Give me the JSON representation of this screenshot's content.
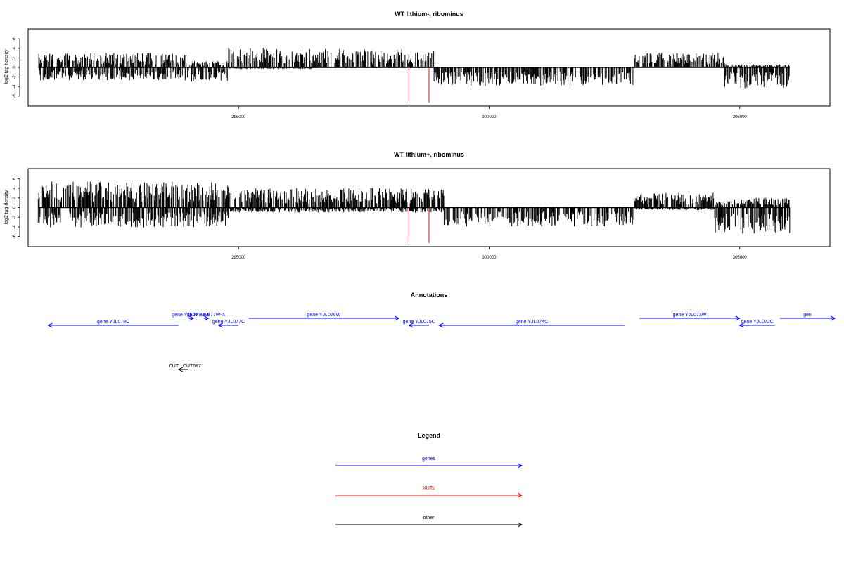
{
  "colors": {
    "genes": "#0000ff",
    "xuts": "#ff0000",
    "other": "#000000",
    "bars": "#000000",
    "baseline": "#000000"
  },
  "chart_data": [
    {
      "id": "top",
      "type": "bar",
      "title": "WT lithium-, ribominus",
      "ylabel": "log2 tag density",
      "xlim": [
        290800,
        306800
      ],
      "ylim": [
        -7.5,
        7.5
      ],
      "xticks": [
        295000,
        300000,
        305000
      ],
      "xtick_labels": [
        "295000",
        "300000",
        "305000"
      ],
      "yticks": [
        -6,
        -4,
        -2,
        0,
        2,
        4,
        6
      ],
      "ytick_labels": [
        "-6",
        "-4",
        "-2",
        "0",
        "2",
        "4",
        "6"
      ],
      "baseline_range": [
        291000,
        306000
      ],
      "xut_marks": [
        298400,
        298800
      ],
      "density_profile": [
        {
          "from": 291000,
          "to": 294000,
          "pos_mean": 1.8,
          "neg_mean": -1.6
        },
        {
          "from": 294000,
          "to": 294800,
          "pos_mean": 0.8,
          "neg_mean": -1.8
        },
        {
          "from": 294800,
          "to": 296500,
          "pos_mean": 2.4,
          "neg_mean": -0.2
        },
        {
          "from": 296500,
          "to": 298900,
          "pos_mean": 2.3,
          "neg_mean": -0.1
        },
        {
          "from": 298900,
          "to": 302900,
          "pos_mean": 0.05,
          "neg_mean": -2.3
        },
        {
          "from": 302900,
          "to": 304700,
          "pos_mean": 1.8,
          "neg_mean": -0.05
        },
        {
          "from": 304700,
          "to": 306000,
          "pos_mean": 0.4,
          "neg_mean": -2.6
        }
      ]
    },
    {
      "id": "bottom",
      "type": "bar",
      "title": "WT lithium+, ribominus",
      "ylabel": "log2 tag density",
      "xlim": [
        290800,
        306800
      ],
      "ylim": [
        -7.5,
        7.5
      ],
      "xticks": [
        295000,
        300000,
        305000
      ],
      "xtick_labels": [
        "295000",
        "300000",
        "305000"
      ],
      "yticks": [
        -6,
        -4,
        -2,
        0,
        2,
        4,
        6
      ],
      "ytick_labels": [
        "-6",
        "-4",
        "-2",
        "0",
        "2",
        "4",
        "6"
      ],
      "baseline_range": [
        291000,
        306000
      ],
      "xut_marks": [
        298400,
        298800
      ],
      "density_profile": [
        {
          "from": 291000,
          "to": 294800,
          "pos_mean": 3.2,
          "neg_mean": -2.4
        },
        {
          "from": 294800,
          "to": 299100,
          "pos_mean": 2.4,
          "neg_mean": -0.6
        },
        {
          "from": 299100,
          "to": 302900,
          "pos_mean": 0.1,
          "neg_mean": -2.3
        },
        {
          "from": 302900,
          "to": 304500,
          "pos_mean": 1.8,
          "neg_mean": -0.3
        },
        {
          "from": 304500,
          "to": 306000,
          "pos_mean": 1.2,
          "neg_mean": -3.2
        }
      ]
    }
  ],
  "annotations": {
    "title": "Annotations",
    "genes": [
      {
        "label": "gene YJL078C",
        "start": 293800,
        "end": 291200,
        "row": 2
      },
      {
        "label": "gene YJL077W-B",
        "start": 294000,
        "end": 294100,
        "row": 1
      },
      {
        "label": "gene YJL077W-A",
        "start": 294300,
        "end": 294400,
        "row": 1
      },
      {
        "label": "gene YJL077C",
        "start": 295000,
        "end": 294600,
        "row": 2
      },
      {
        "label": "gene YJL076W",
        "start": 295200,
        "end": 298200,
        "row": 1
      },
      {
        "label": "gene YJL075C",
        "start": 298800,
        "end": 298400,
        "row": 2
      },
      {
        "label": "gene YJL074C",
        "start": 302700,
        "end": 299000,
        "row": 2
      },
      {
        "label": "gene YJL073W",
        "start": 303000,
        "end": 305000,
        "row": 1
      },
      {
        "label": "gene YJL072C",
        "start": 305700,
        "end": 305000,
        "row": 2
      },
      {
        "label": "gen",
        "start": 305800,
        "end": 306900,
        "row": 1
      }
    ],
    "others": [
      {
        "label": "CUT",
        "start": 294000,
        "end": 293800,
        "row": 0
      },
      {
        "label": "CUT687",
        "start": 294000,
        "end": 293800,
        "row": 0
      }
    ]
  },
  "legend": {
    "title": "Legend",
    "items": [
      {
        "label": "genes",
        "color_key": "genes"
      },
      {
        "label": "XUTs",
        "color_key": "xuts"
      },
      {
        "label": "other",
        "color_key": "other"
      }
    ]
  }
}
